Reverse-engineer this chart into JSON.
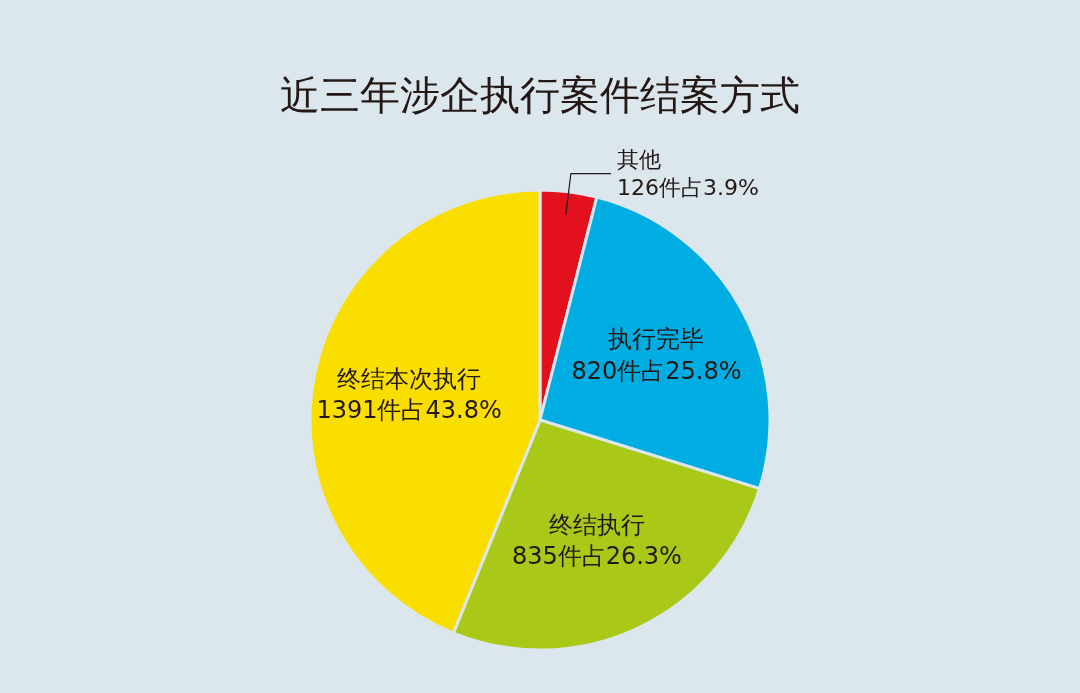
{
  "chart_data": {
    "type": "pie",
    "title": "近三年涉企执行案件结案方式",
    "categories": [
      "其他",
      "执行完毕",
      "终结执行",
      "终结本次执行"
    ],
    "values": [
      126,
      820,
      835,
      1391
    ],
    "value_labels": [
      "126件占3.9%",
      "820件占25.8%",
      "835件占26.3%",
      "1391件占43.8%"
    ],
    "colors": [
      "#e3101d",
      "#00ade2",
      "#a9c817",
      "#fade00"
    ]
  }
}
